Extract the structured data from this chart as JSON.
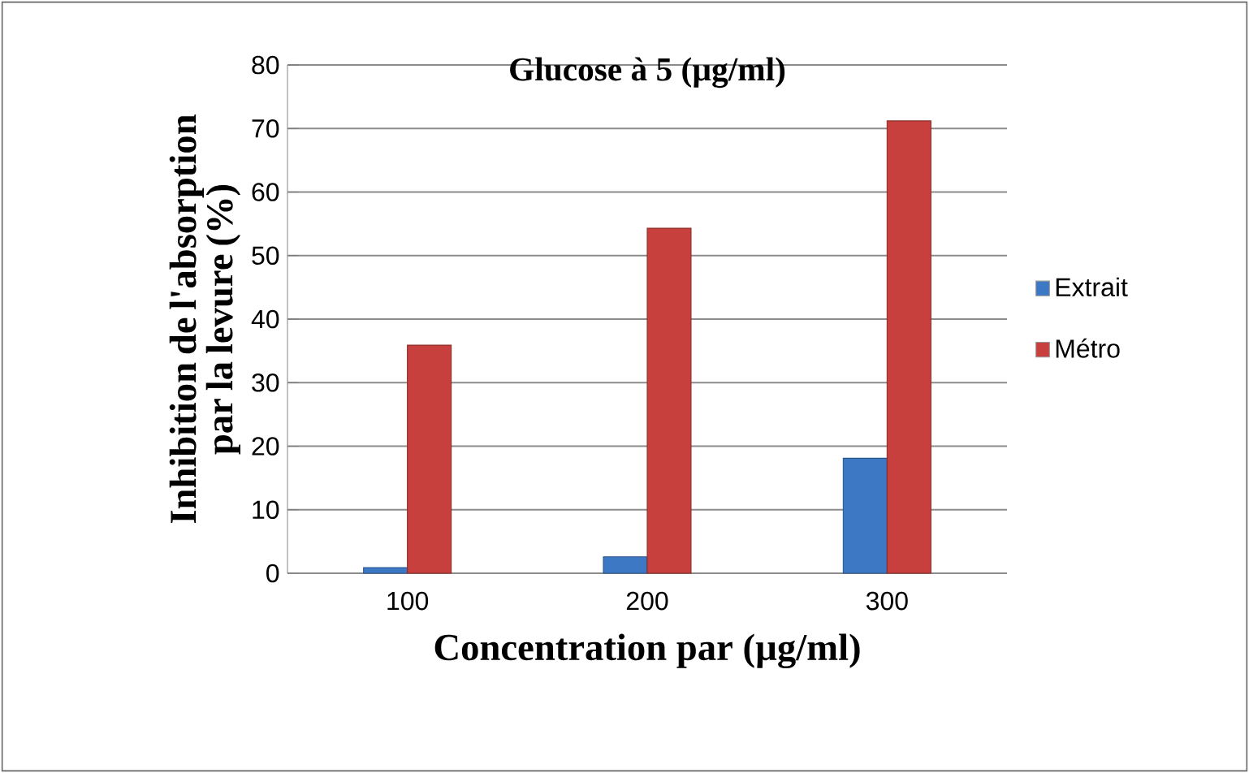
{
  "chart_data": {
    "type": "bar",
    "title": "Glucose à 5 (µg/ml)",
    "xlabel": "Concentration par (µg/ml)",
    "ylabel": "Inhibition de l'absorption par la levure (%)",
    "categories": [
      "100",
      "200",
      "300"
    ],
    "series": [
      {
        "name": "Extrait",
        "color": "#3d78c4",
        "values": [
          0.9,
          2.6,
          18.1
        ]
      },
      {
        "name": "Métro",
        "color": "#c8403d",
        "values": [
          35.9,
          54.3,
          71.2
        ]
      }
    ],
    "ylim": [
      0,
      80
    ],
    "yticks": [
      0,
      10,
      20,
      30,
      40,
      50,
      60,
      70,
      80
    ],
    "grid": "y",
    "legend": "right"
  }
}
